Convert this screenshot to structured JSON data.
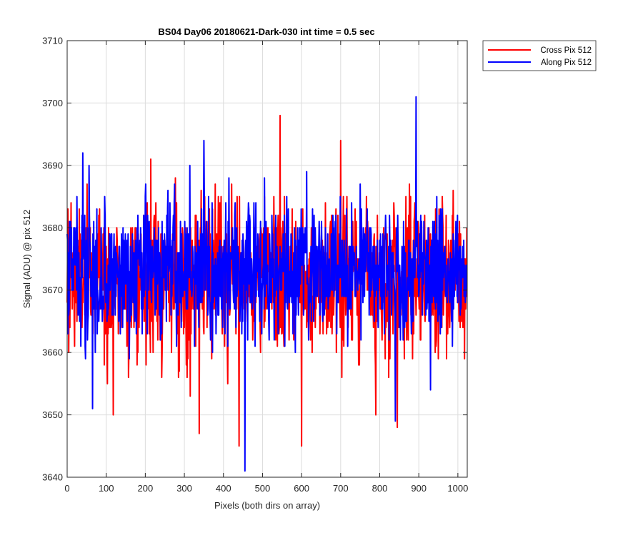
{
  "chart_data": {
    "type": "line",
    "title": "BS04 Day06 20180621-Dark-030 int time = 0.5 sec",
    "xlabel": "Pixels (both dirs on array)",
    "ylabel": "Signal (ADU) @ pix 512",
    "xlim": [
      0,
      1024
    ],
    "ylim": [
      3640,
      3710
    ],
    "xticks": [
      0,
      100,
      200,
      300,
      400,
      500,
      600,
      700,
      800,
      900,
      1000
    ],
    "yticks": [
      3640,
      3650,
      3660,
      3670,
      3680,
      3690,
      3700,
      3710
    ],
    "grid": true,
    "legend_position": "outside top-right",
    "series": [
      {
        "name": "Cross Pix 512",
        "color": "#ff0000",
        "n_points": 1024,
        "mean": 3672,
        "std": 6,
        "range": [
          3645,
          3698
        ],
        "notable_points": [
          [
            4,
            3660
          ],
          [
            10,
            3684
          ],
          [
            118,
            3650
          ],
          [
            214,
            3691
          ],
          [
            338,
            3647
          ],
          [
            440,
            3645
          ],
          [
            545,
            3698
          ],
          [
            600,
            3645
          ],
          [
            700,
            3694
          ],
          [
            790,
            3650
          ],
          [
            845,
            3648
          ]
        ]
      },
      {
        "name": "Along Pix 512",
        "color": "#0000ff",
        "n_points": 1024,
        "mean": 3673,
        "std": 5.5,
        "range": [
          3641,
          3701
        ],
        "notable_points": [
          [
            40,
            3692
          ],
          [
            65,
            3651
          ],
          [
            350,
            3694
          ],
          [
            455,
            3641
          ],
          [
            840,
            3649
          ],
          [
            893,
            3701
          ],
          [
            930,
            3654
          ]
        ]
      }
    ]
  }
}
